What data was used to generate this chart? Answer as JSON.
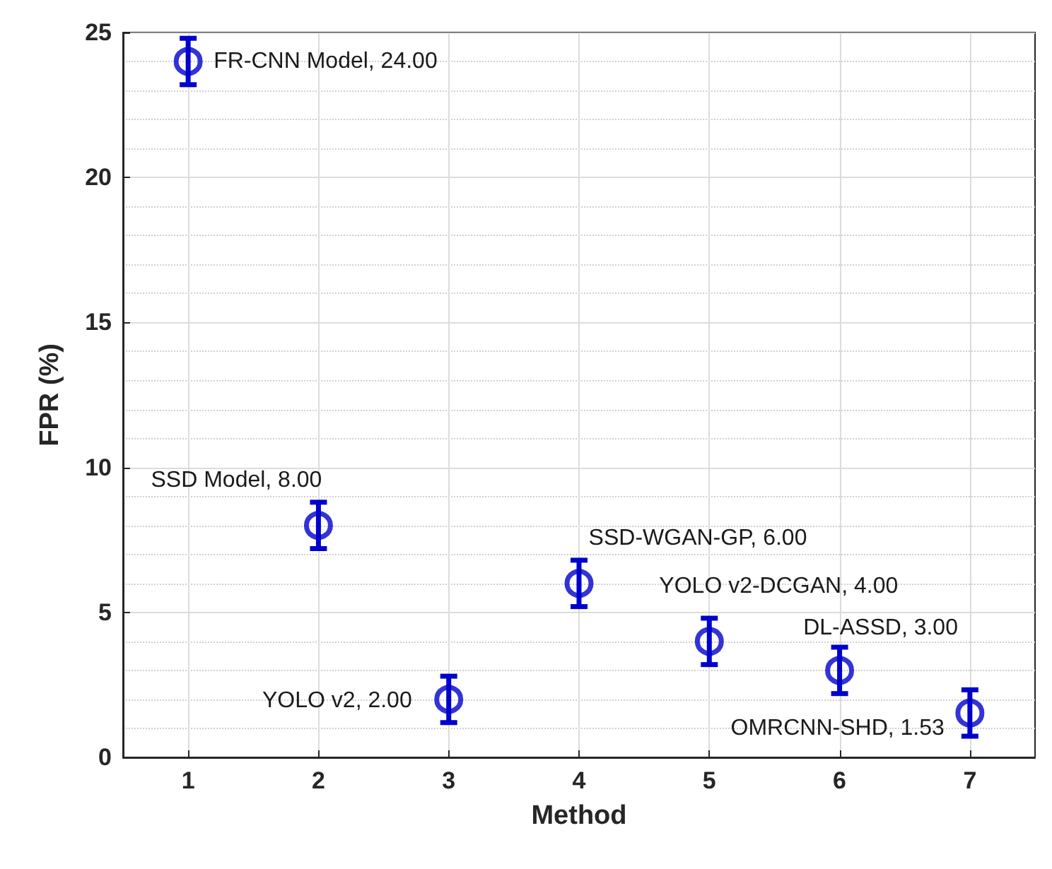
{
  "chart_data": {
    "type": "scatter",
    "xlabel": "Method",
    "ylabel": "FPR (%)",
    "x": [
      1,
      2,
      3,
      4,
      5,
      6,
      7
    ],
    "series": [
      {
        "color": "#0000cc",
        "values": [
          24,
          8,
          2,
          6,
          4,
          3,
          1.53
        ],
        "errors": [
          0.8,
          0.8,
          0.8,
          0.8,
          0.8,
          0.8,
          0.8
        ]
      }
    ],
    "xlim": [
      0.5,
      7.5
    ],
    "xticks": [
      1,
      2,
      3,
      4,
      5,
      6,
      7
    ],
    "ylim": [
      0,
      25
    ],
    "yticks": [
      0,
      5,
      10,
      15,
      20,
      25
    ],
    "grid": true,
    "marker": "circle",
    "annotations": [
      {
        "text": "FR-CNN Model, 24.00",
        "x": 1,
        "y": 24
      },
      {
        "text": "SSD Model, 8.00",
        "x": 2,
        "y": 8
      },
      {
        "text": "YOLO v2, 2.00",
        "x": 3,
        "y": 2
      },
      {
        "text": "SSD-WGAN-GP, 6.00",
        "x": 4,
        "y": 6
      },
      {
        "text": "YOLO v2-DCGAN, 4.00",
        "x": 5,
        "y": 4
      },
      {
        "text": "DL-ASSD, 3.00",
        "x": 6,
        "y": 3
      },
      {
        "text": "OMRCNN-SHD, 1.53",
        "x": 7,
        "y": 1.53
      }
    ]
  }
}
